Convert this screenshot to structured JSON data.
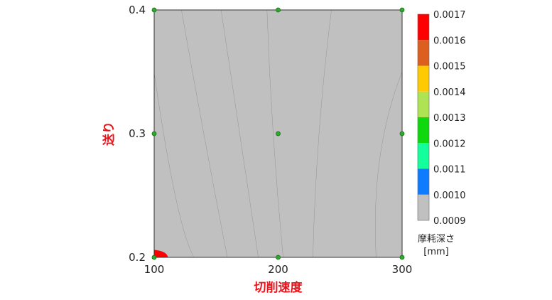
{
  "chart_data": {
    "type": "contour",
    "title": "",
    "xlabel": "切削速度",
    "ylabel": "送り",
    "xlim": [
      100,
      300
    ],
    "ylim": [
      0.2,
      0.4
    ],
    "x_ticks": [
      "100",
      "200",
      "300"
    ],
    "y_ticks": [
      "0.2",
      "0.3",
      "0.4"
    ],
    "colorbar": {
      "title_line1": "摩耗深さ",
      "title_line2": "[mm]",
      "levels": [
        "0.0009",
        "0.0010",
        "0.0011",
        "0.0012",
        "0.0013",
        "0.0014",
        "0.0015",
        "0.0016",
        "0.0017"
      ],
      "colors": [
        "#c0c0c0",
        "#0f7bff",
        "#12ff9b",
        "#10d80f",
        "#aee453",
        "#ffca02",
        "#dd5f20",
        "#ff0000"
      ]
    },
    "contour_lines": [
      {
        "level": 0.001,
        "points": [
          [
            100,
            0.206
          ],
          [
            108,
            0.204
          ],
          [
            111,
            0.2
          ]
        ]
      },
      {
        "level": 0.0011,
        "points": [
          [
            100,
            0.349
          ],
          [
            117,
            0.25
          ],
          [
            132,
            0.2
          ]
        ]
      },
      {
        "level": 0.0012,
        "points": [
          [
            122,
            0.4
          ],
          [
            140,
            0.3
          ],
          [
            159,
            0.2
          ]
        ]
      },
      {
        "level": 0.0013,
        "points": [
          [
            154,
            0.4
          ],
          [
            169,
            0.3
          ],
          [
            184,
            0.2
          ]
        ]
      },
      {
        "level": 0.0014,
        "points": [
          [
            191,
            0.4
          ],
          [
            196,
            0.3
          ],
          [
            204,
            0.2
          ]
        ]
      },
      {
        "level": 0.0015,
        "points": [
          [
            243,
            0.4
          ],
          [
            233,
            0.3
          ],
          [
            228,
            0.2
          ]
        ]
      },
      {
        "level": 0.0016,
        "points": [
          [
            300,
            0.35
          ],
          [
            282,
            0.28
          ],
          [
            279,
            0.2
          ]
        ]
      }
    ],
    "design_points": [
      {
        "x": 100,
        "y": 0.2
      },
      {
        "x": 200,
        "y": 0.2
      },
      {
        "x": 300,
        "y": 0.2
      },
      {
        "x": 100,
        "y": 0.3
      },
      {
        "x": 200,
        "y": 0.3
      },
      {
        "x": 300,
        "y": 0.3
      },
      {
        "x": 100,
        "y": 0.4
      },
      {
        "x": 200,
        "y": 0.4
      },
      {
        "x": 300,
        "y": 0.4
      }
    ]
  }
}
